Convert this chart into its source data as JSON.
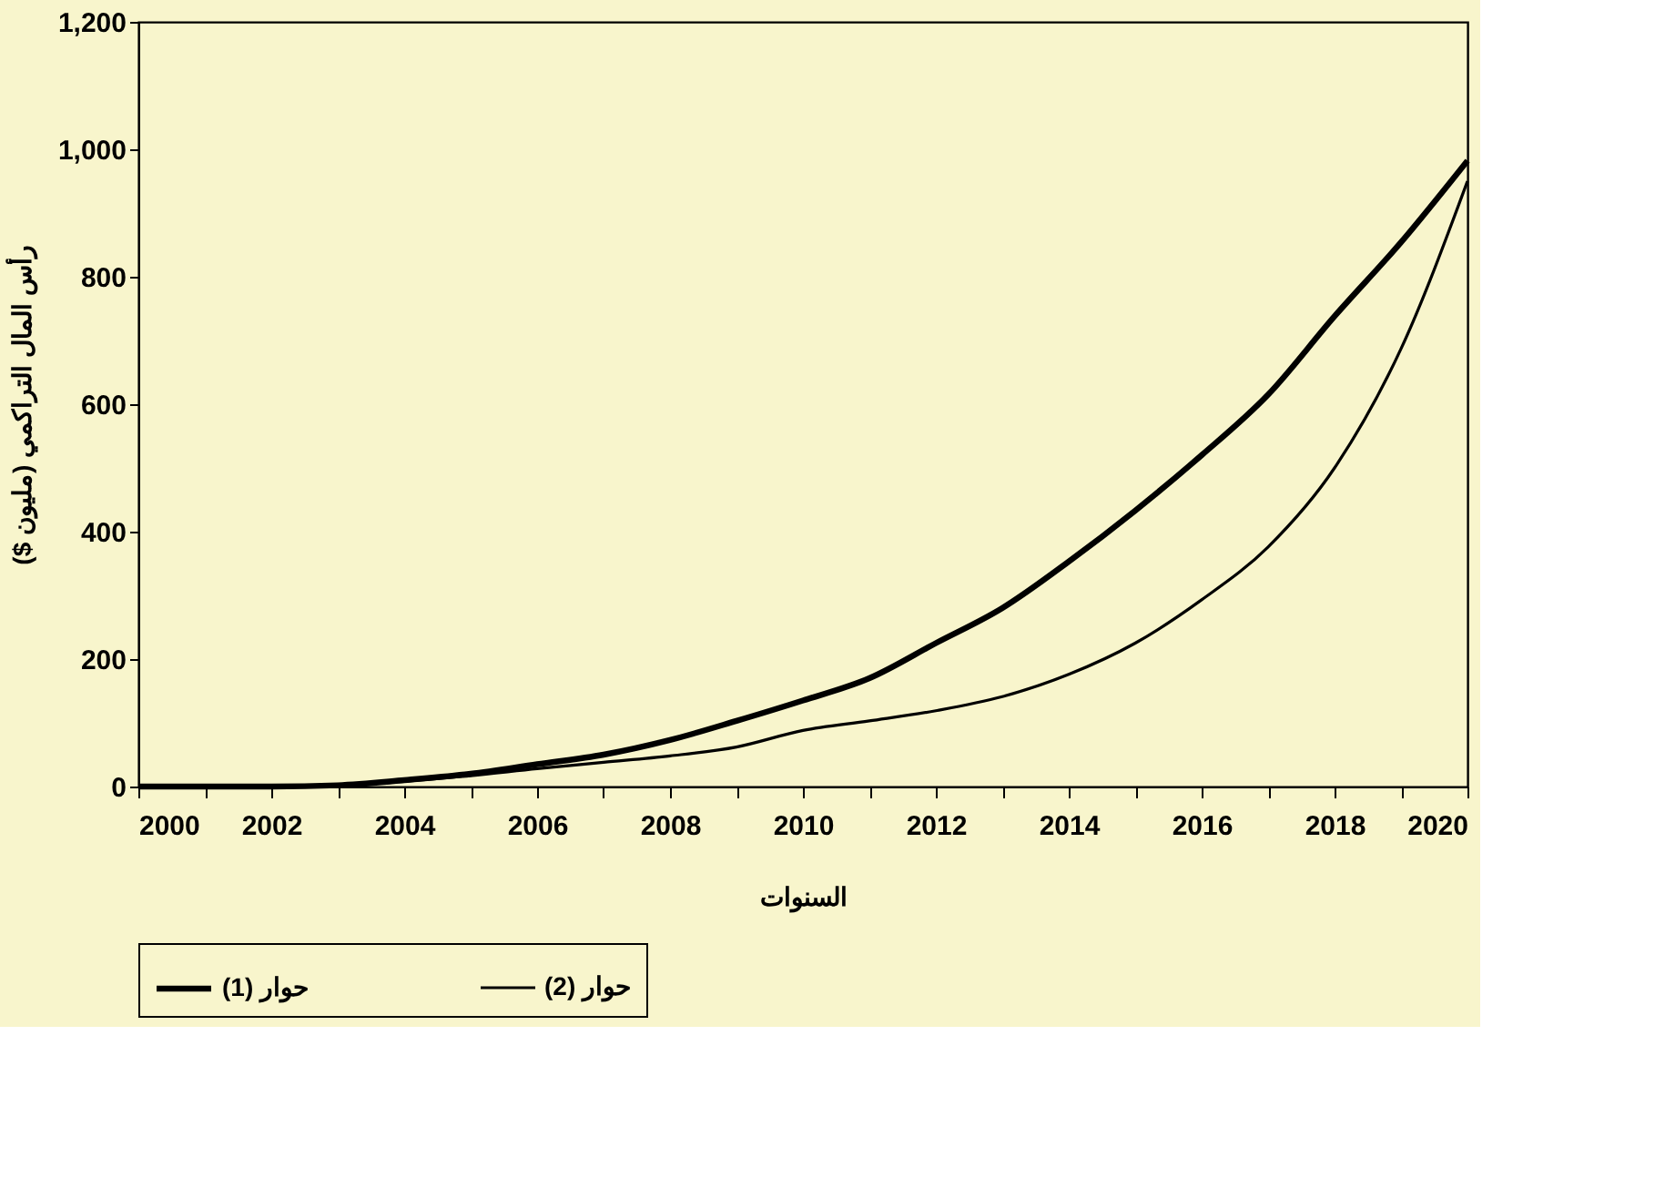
{
  "chart_data": {
    "type": "line",
    "xlabel": "السنوات",
    "ylabel": "رأس المال التراكمي (مليون $)",
    "x": [
      2000,
      2001,
      2002,
      2003,
      2004,
      2005,
      2006,
      2007,
      2008,
      2009,
      2010,
      2011,
      2012,
      2013,
      2014,
      2015,
      2016,
      2017,
      2018,
      2019,
      2020
    ],
    "series": [
      {
        "name": "حوار (1)",
        "color": "#000000",
        "values": [
          0,
          0,
          0,
          2,
          10,
          20,
          35,
          50,
          73,
          103,
          135,
          170,
          225,
          280,
          353,
          433,
          520,
          615,
          738,
          854,
          982
        ]
      },
      {
        "name": "حوار (2)",
        "color": "#000000",
        "values": [
          0,
          0,
          0,
          2,
          8,
          17,
          28,
          38,
          48,
          62,
          88,
          103,
          119,
          141,
          176,
          225,
          293,
          376,
          500,
          687,
          950
        ]
      }
    ],
    "xlim": [
      2000,
      2020
    ],
    "xticks": [
      2000,
      {
        "value": 2001,
        "label": null
      },
      2002,
      {
        "value": 2003,
        "label": null
      },
      2004,
      {
        "value": 2005,
        "label": null
      },
      2006,
      {
        "value": 2007,
        "label": null
      },
      2008,
      {
        "value": 2009,
        "label": null
      },
      2010,
      {
        "value": 2011,
        "label": null
      },
      2012,
      {
        "value": 2013,
        "label": null
      },
      2014,
      {
        "value": 2015,
        "label": null
      },
      2016,
      {
        "value": 2017,
        "label": null
      },
      2018,
      {
        "value": 2019,
        "label": null
      },
      2020
    ],
    "ylim": [
      0,
      1200
    ],
    "yticks": [
      0,
      200,
      400,
      600,
      800,
      {
        "value": 1000,
        "label": "1,000"
      },
      {
        "value": 1200,
        "label": "1,200"
      }
    ],
    "grid": false,
    "legend": "bottom",
    "marker": "none",
    "line_style": "solid"
  }
}
